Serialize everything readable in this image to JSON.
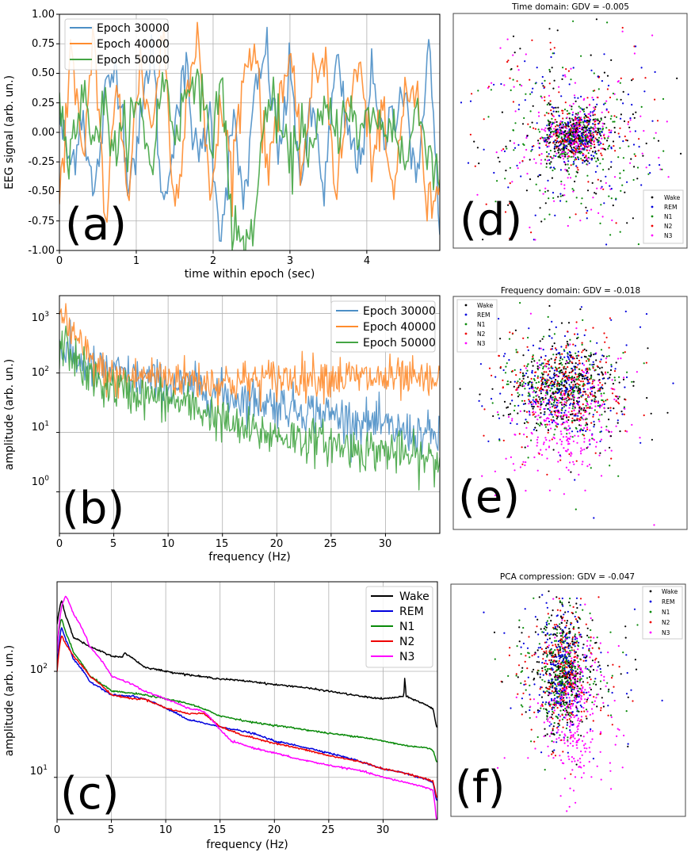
{
  "colors": {
    "epoch_30000": "#4c8fc6",
    "epoch_40000": "#ff8c2e",
    "epoch_50000": "#44a544",
    "Wake": "#000000",
    "REM": "#0000dd",
    "N1": "#0a8a0a",
    "N2": "#ee0000",
    "N3": "#ff00ff",
    "grid": "#b0b0b0"
  },
  "chart_data": [
    {
      "id": "a",
      "type": "line",
      "panel_label": "(a)",
      "xlabel": "time within epoch (sec)",
      "ylabel": "EEG signal (arb. un.)",
      "xlim": [
        0,
        4.95
      ],
      "ylim": [
        -1.0,
        1.0
      ],
      "xticks": [
        "0",
        "1",
        "2",
        "3",
        "4"
      ],
      "yticks": [
        "-1.00",
        "-0.75",
        "-0.50",
        "-0.25",
        "0.00",
        "0.25",
        "0.50",
        "0.75",
        "1.00"
      ],
      "legend": [
        "Epoch 30000",
        "Epoch 40000",
        "Epoch 50000"
      ],
      "legend_loc": "upper left",
      "grid": true,
      "series": [
        {
          "name": "Epoch 30000",
          "x": [
            0,
            0.15,
            0.3,
            0.45,
            0.6,
            0.75,
            0.9,
            1.05,
            1.2,
            1.35,
            1.5,
            1.65,
            1.8,
            1.95,
            2.1,
            2.25,
            2.4,
            2.55,
            2.7,
            2.85,
            3.0,
            3.15,
            3.3,
            3.45,
            3.6,
            3.75,
            3.9,
            4.05,
            4.2,
            4.35,
            4.5,
            4.65,
            4.8,
            4.95
          ],
          "y": [
            0.1,
            -0.3,
            0.2,
            -0.6,
            0.3,
            0.6,
            -0.4,
            0.0,
            0.8,
            -0.7,
            0.1,
            0.5,
            -0.3,
            0.2,
            -0.9,
            0.1,
            -0.6,
            0.3,
            0.7,
            -0.2,
            0.5,
            -0.4,
            0.2,
            -0.5,
            0.6,
            0.0,
            -0.3,
            0.5,
            -0.1,
            0.2,
            0.4,
            -0.6,
            0.9,
            -0.9
          ]
        },
        {
          "name": "Epoch 40000",
          "x": [
            0,
            0.15,
            0.3,
            0.45,
            0.6,
            0.75,
            0.9,
            1.05,
            1.2,
            1.35,
            1.5,
            1.65,
            1.8,
            1.95,
            2.1,
            2.25,
            2.4,
            2.55,
            2.7,
            2.85,
            3.0,
            3.15,
            3.3,
            3.45,
            3.6,
            3.75,
            3.9,
            4.05,
            4.2,
            4.35,
            4.5,
            4.65,
            4.8,
            4.95
          ],
          "y": [
            -0.6,
            0.7,
            -0.3,
            0.9,
            -0.8,
            0.4,
            -0.5,
            0.6,
            0.0,
            0.9,
            -0.7,
            0.3,
            0.9,
            -0.6,
            0.2,
            -0.3,
            0.5,
            0.8,
            -0.4,
            0.3,
            0.6,
            -0.3,
            0.4,
            0.7,
            -0.5,
            0.2,
            0.6,
            -0.2,
            0.1,
            -0.6,
            0.4,
            0.3,
            -0.7,
            -0.3
          ]
        },
        {
          "name": "Epoch 50000",
          "x": [
            0,
            0.15,
            0.3,
            0.45,
            0.6,
            0.75,
            0.9,
            1.05,
            1.2,
            1.35,
            1.5,
            1.65,
            1.8,
            1.95,
            2.1,
            2.25,
            2.4,
            2.55,
            2.7,
            2.85,
            3.0,
            3.15,
            3.3,
            3.45,
            3.6,
            3.75,
            3.9,
            4.05,
            4.2,
            4.35,
            4.5,
            4.65,
            4.8,
            4.95
          ],
          "y": [
            0.2,
            -0.1,
            0.3,
            0.0,
            0.2,
            -0.2,
            0.1,
            0.2,
            -0.3,
            0.5,
            0.0,
            0.3,
            0.6,
            -0.2,
            0.5,
            -0.8,
            -1.0,
            -0.7,
            0.3,
            0.1,
            -0.3,
            0.1,
            -0.2,
            0.2,
            0.0,
            0.3,
            -0.1,
            0.2,
            0.0,
            0.1,
            -0.3,
            0.2,
            -0.1,
            -0.4
          ]
        }
      ]
    },
    {
      "id": "b",
      "type": "line",
      "panel_label": "(b)",
      "xlabel": "frequency (Hz)",
      "ylabel": "amplitude (arb. un.)",
      "yscale": "log",
      "xlim": [
        0,
        35
      ],
      "ylim": [
        0.2,
        2000
      ],
      "xticks": [
        "0",
        "5",
        "10",
        "15",
        "20",
        "25",
        "30"
      ],
      "yticks": [
        "10",
        "10",
        "10",
        "10"
      ],
      "ytick_exponents": [
        "0",
        "1",
        "2",
        "3"
      ],
      "legend": [
        "Epoch 30000",
        "Epoch 40000",
        "Epoch 50000"
      ],
      "legend_loc": "upper right",
      "grid": true,
      "series": [
        {
          "name": "Epoch 30000",
          "x": [
            0,
            0.5,
            1,
            2,
            3,
            4,
            5,
            6,
            8,
            10,
            12,
            14,
            16,
            18,
            20,
            22,
            24,
            26,
            28,
            30,
            32,
            34,
            35
          ],
          "y": [
            300,
            220,
            200,
            150,
            120,
            110,
            100,
            90,
            80,
            60,
            60,
            50,
            40,
            35,
            30,
            25,
            22,
            18,
            15,
            12,
            10,
            9,
            8
          ]
        },
        {
          "name": "Epoch 40000",
          "x": [
            0,
            0.5,
            1,
            2,
            3,
            4,
            5,
            6,
            8,
            10,
            12,
            14,
            16,
            18,
            20,
            22,
            24,
            26,
            28,
            30,
            32,
            34,
            35
          ],
          "y": [
            1000,
            900,
            500,
            250,
            150,
            100,
            80,
            80,
            90,
            85,
            80,
            70,
            70,
            75,
            80,
            85,
            90,
            85,
            80,
            80,
            75,
            70,
            70
          ]
        },
        {
          "name": "Epoch 50000",
          "x": [
            0,
            0.5,
            1,
            2,
            3,
            4,
            5,
            6,
            8,
            10,
            12,
            14,
            16,
            18,
            20,
            22,
            24,
            26,
            28,
            30,
            32,
            34,
            35
          ],
          "y": [
            250,
            300,
            220,
            120,
            80,
            60,
            55,
            50,
            40,
            35,
            28,
            20,
            12,
            10,
            9,
            8,
            7,
            6,
            5,
            5,
            4,
            3.5,
            3
          ]
        }
      ]
    },
    {
      "id": "c",
      "type": "line",
      "panel_label": "(c)",
      "xlabel": "frequency (Hz)",
      "ylabel": "amplitude (arb. un.)",
      "yscale": "log",
      "xlim": [
        0,
        35
      ],
      "ylim": [
        4,
        700
      ],
      "xticks": [
        "0",
        "5",
        "10",
        "15",
        "20",
        "25",
        "30"
      ],
      "yticks": [
        "10",
        "10"
      ],
      "ytick_exponents": [
        "1",
        "2"
      ],
      "legend": [
        "Wake",
        "REM",
        "N1",
        "N2",
        "N3"
      ],
      "legend_loc": "upper right",
      "grid": true,
      "series": [
        {
          "name": "Wake",
          "x": [
            0,
            0.4,
            0.8,
            1.5,
            3,
            5,
            6,
            6.2,
            8,
            10,
            13,
            15,
            18,
            20,
            22,
            25,
            28,
            30,
            31.9,
            32,
            32.1,
            34,
            34.6,
            34.9
          ],
          "y": [
            280,
            470,
            330,
            210,
            170,
            140,
            135,
            150,
            110,
            100,
            90,
            85,
            80,
            75,
            72,
            65,
            58,
            55,
            58,
            88,
            58,
            48,
            44,
            30
          ]
        },
        {
          "name": "REM",
          "x": [
            0,
            0.4,
            0.8,
            1.5,
            3,
            5,
            7,
            8,
            10,
            12,
            15,
            18,
            20,
            22,
            25,
            28,
            30,
            32,
            34,
            34.6,
            34.9
          ],
          "y": [
            110,
            260,
            200,
            130,
            80,
            60,
            58,
            55,
            45,
            35,
            30,
            26,
            22,
            20,
            17,
            14,
            12,
            11,
            9.5,
            8.8,
            6
          ]
        },
        {
          "name": "N1",
          "x": [
            0,
            0.4,
            0.8,
            1.5,
            3,
            5,
            7,
            8,
            10,
            12,
            14,
            15,
            18,
            20,
            22,
            25,
            28,
            30,
            32,
            34,
            34.6,
            34.9
          ],
          "y": [
            170,
            320,
            230,
            150,
            90,
            65,
            62,
            60,
            55,
            50,
            42,
            38,
            33,
            31,
            29,
            26,
            24,
            22,
            20,
            19,
            18,
            14
          ]
        },
        {
          "name": "N2",
          "x": [
            0,
            0.4,
            0.8,
            1.5,
            3,
            5,
            7,
            8,
            10,
            12,
            13.5,
            15,
            17,
            20,
            22,
            25,
            28,
            30,
            32,
            34,
            34.6,
            34.9
          ],
          "y": [
            100,
            220,
            180,
            140,
            90,
            60,
            55,
            55,
            45,
            40,
            40,
            30,
            25,
            21,
            19,
            16,
            14,
            12,
            11,
            9.6,
            9.2,
            6.5
          ]
        },
        {
          "name": "N3",
          "x": [
            0,
            0.4,
            0.8,
            1.5,
            3,
            5,
            7,
            8,
            10,
            12,
            13.5,
            15,
            16,
            18,
            20,
            22,
            25,
            28,
            30,
            32,
            34,
            34.6,
            34.9
          ],
          "y": [
            150,
            400,
            520,
            350,
            170,
            90,
            75,
            65,
            55,
            45,
            42,
            28,
            22,
            19,
            17,
            15,
            13,
            11.5,
            10,
            9,
            8,
            7.5,
            4
          ]
        }
      ]
    },
    {
      "id": "d",
      "type": "scatter",
      "panel_label": "(d)",
      "title": "Time domain: GDV = -0.005",
      "legend": [
        "Wake",
        "REM",
        "N1",
        "N2",
        "N3"
      ],
      "legend_loc": "lower right",
      "cluster": {
        "center": [
          0.52,
          0.52
        ],
        "core_spread": [
          0.06,
          0.05
        ],
        "halo_spread": [
          0.38,
          0.42
        ]
      }
    },
    {
      "id": "e",
      "type": "scatter",
      "panel_label": "(e)",
      "title": "Frequency domain: GDV = -0.018",
      "legend": [
        "Wake",
        "REM",
        "N1",
        "N2",
        "N3"
      ],
      "legend_loc": "upper left",
      "cluster": {
        "center": [
          0.47,
          0.42
        ],
        "core_spread": [
          0.1,
          0.08
        ],
        "halo_spread": [
          0.3,
          0.3
        ]
      }
    },
    {
      "id": "f",
      "type": "scatter",
      "panel_label": "(f)",
      "title": "PCA compression: GDV = -0.047",
      "legend": [
        "Wake",
        "REM",
        "N1",
        "N2",
        "N3"
      ],
      "legend_loc": "upper right",
      "cluster": {
        "center": [
          0.48,
          0.38
        ],
        "core_spread": [
          0.04,
          0.12
        ],
        "halo_spread": [
          0.22,
          0.3
        ]
      }
    }
  ]
}
